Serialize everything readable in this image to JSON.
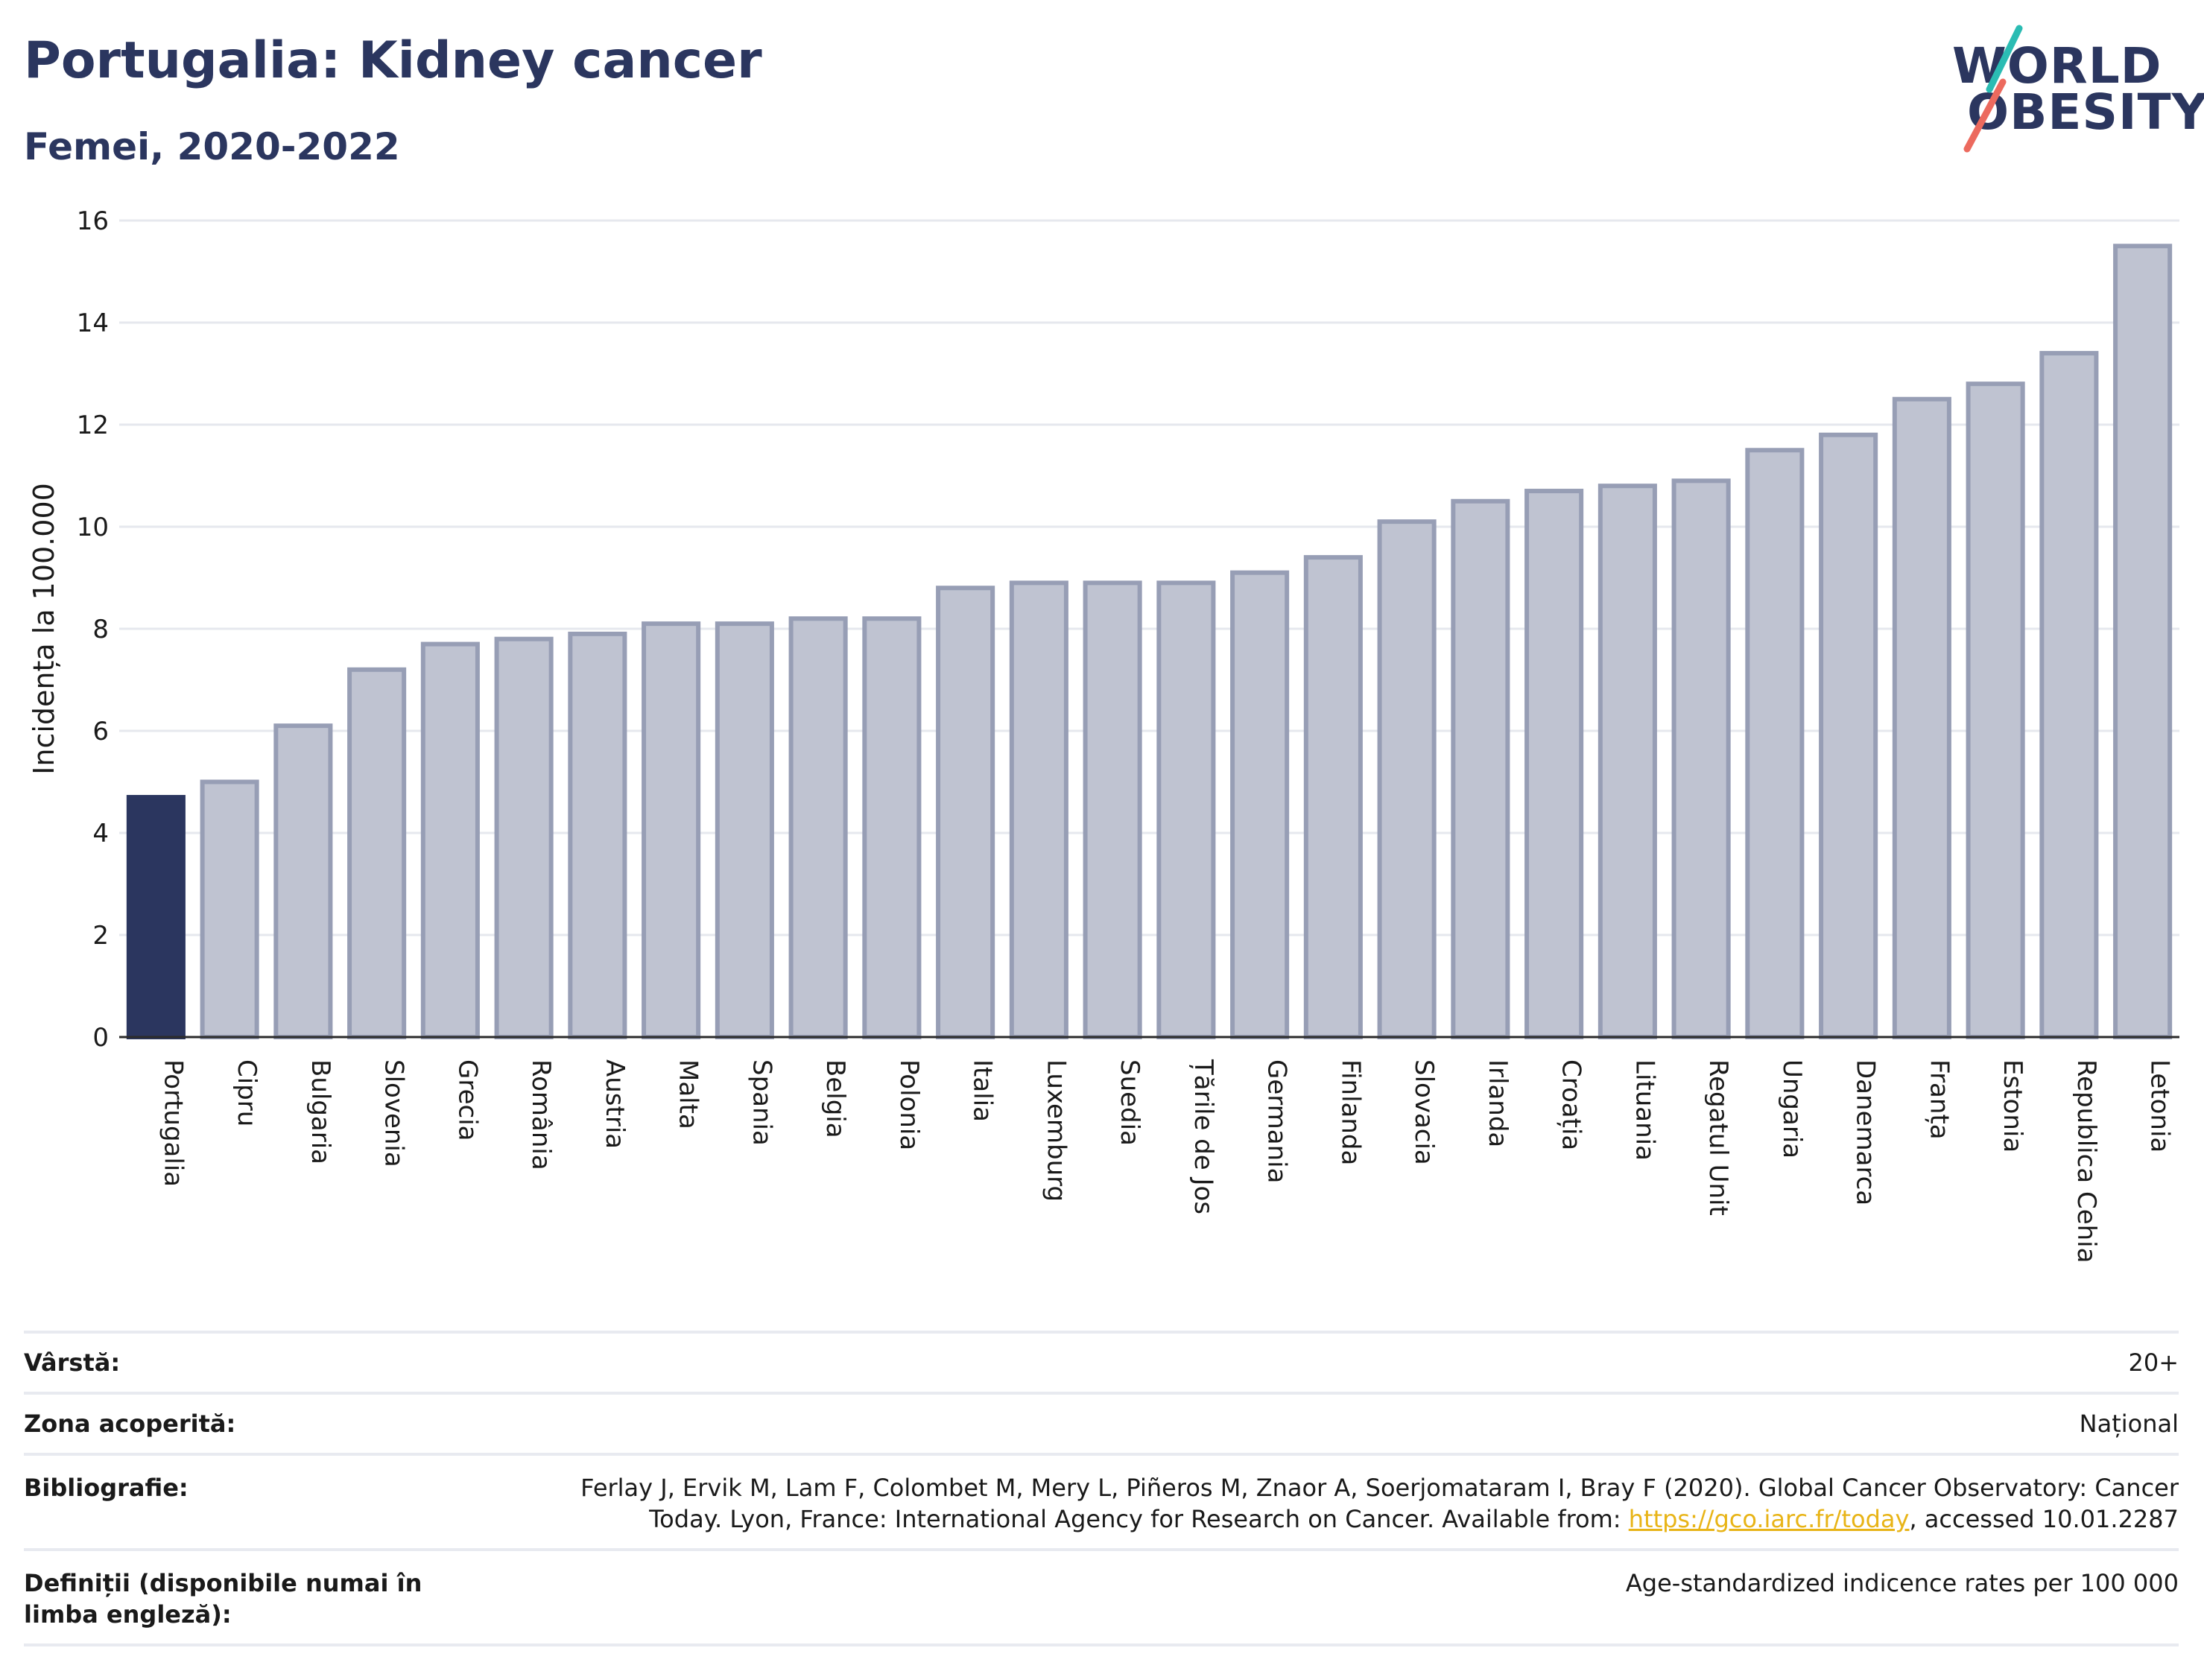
{
  "header": {
    "title": "Portugalia: Kidney cancer",
    "subtitle": "Femei, 2020-2022"
  },
  "logo": {
    "line1": "WORLD",
    "line2": "OBESITY",
    "colors": {
      "text": "#2b365f",
      "teal": "#2bbcb3",
      "coral": "#ec6a5e"
    }
  },
  "colors": {
    "highlight_bar": "#2b365f",
    "other_bar_fill": "#bfc3d1",
    "other_bar_stroke": "#979eb5",
    "grid": "#e6e8ee",
    "link": "#e8b417"
  },
  "chart_data": {
    "type": "bar",
    "title": "",
    "xlabel": "",
    "ylabel": "Incidența la 100.000",
    "ylim": [
      0,
      16
    ],
    "yticks": [
      0,
      2,
      4,
      6,
      8,
      10,
      12,
      14,
      16
    ],
    "grid": true,
    "highlight": "Portugalia",
    "categories": [
      "Portugalia",
      "Cipru",
      "Bulgaria",
      "Slovenia",
      "Grecia",
      "România",
      "Austria",
      "Malta",
      "Spania",
      "Belgia",
      "Polonia",
      "Italia",
      "Luxemburg",
      "Suedia",
      "Țările de Jos",
      "Germania",
      "Finlanda",
      "Slovacia",
      "Irlanda",
      "Croația",
      "Lituania",
      "Regatul Unit",
      "Ungaria",
      "Danemarca",
      "Franța",
      "Estonia",
      "Republica Cehia",
      "Letonia"
    ],
    "values": [
      4.7,
      5.0,
      6.1,
      7.2,
      7.7,
      7.8,
      7.9,
      8.1,
      8.1,
      8.2,
      8.2,
      8.8,
      8.9,
      8.9,
      8.9,
      9.1,
      9.4,
      10.1,
      10.5,
      10.7,
      10.8,
      10.9,
      11.5,
      11.8,
      12.5,
      12.8,
      13.4,
      15.5
    ]
  },
  "meta": {
    "age_label": "Vârstă:",
    "age_value": "20+",
    "coverage_label": "Zona acoperită:",
    "coverage_value": "Național",
    "biblio_label": "Bibliografie:",
    "biblio_line1": "Ferlay J, Ervik M, Lam F, Colombet M, Mery L, Piñeros M, Znaor A, Soerjomataram I, Bray F (2020). Global Cancer Observatory: Cancer",
    "biblio_line2_pre": "Today. Lyon, France: International Agency for Research on Cancer. Available from: ",
    "biblio_link": "https://gco.iarc.fr/today",
    "biblio_line2_post": ", accessed 10.01.2287",
    "definitions_label": "Definiții (disponibile numai în limba engleză):",
    "definitions_value": "Age-standardized indicence rates per 100 000"
  }
}
